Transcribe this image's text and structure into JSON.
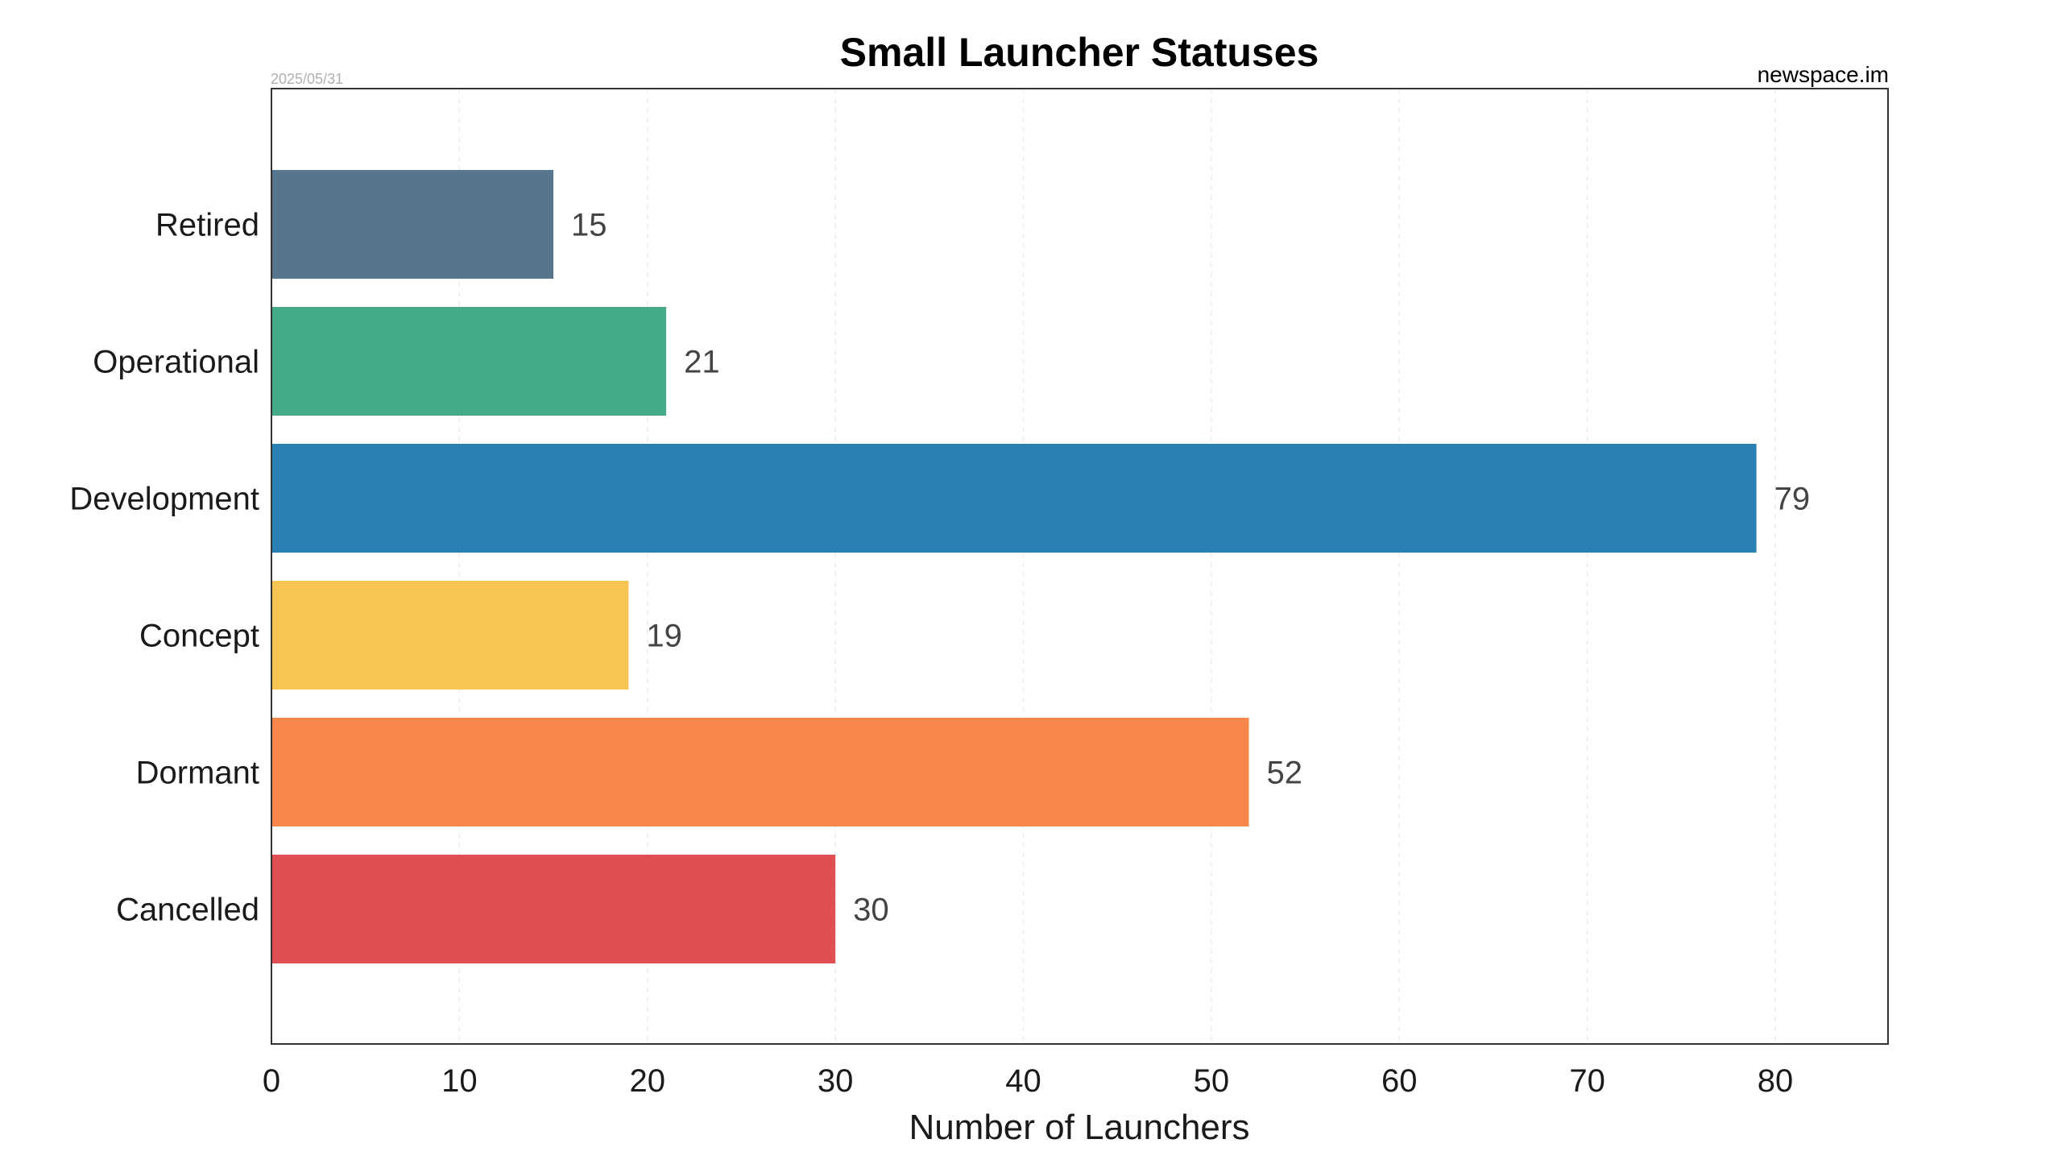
{
  "chart_data": {
    "type": "bar",
    "orientation": "horizontal",
    "title": "Small Launcher Statuses",
    "date": "2025/05/31",
    "source": "newspace.im",
    "xlabel": "Number of Launchers",
    "ylabel": "",
    "xlim": [
      0,
      86
    ],
    "xticks": [
      0,
      10,
      20,
      30,
      40,
      50,
      60,
      70,
      80
    ],
    "grid": true,
    "categories": [
      "Retired",
      "Operational",
      "Development",
      "Concept",
      "Dormant",
      "Cancelled"
    ],
    "values": [
      15,
      21,
      79,
      19,
      52,
      30
    ],
    "colors": [
      "#56758f",
      "#45aa8a",
      "#2a7fb5",
      "#f7c551",
      "#f7864b",
      "#e05053"
    ]
  }
}
